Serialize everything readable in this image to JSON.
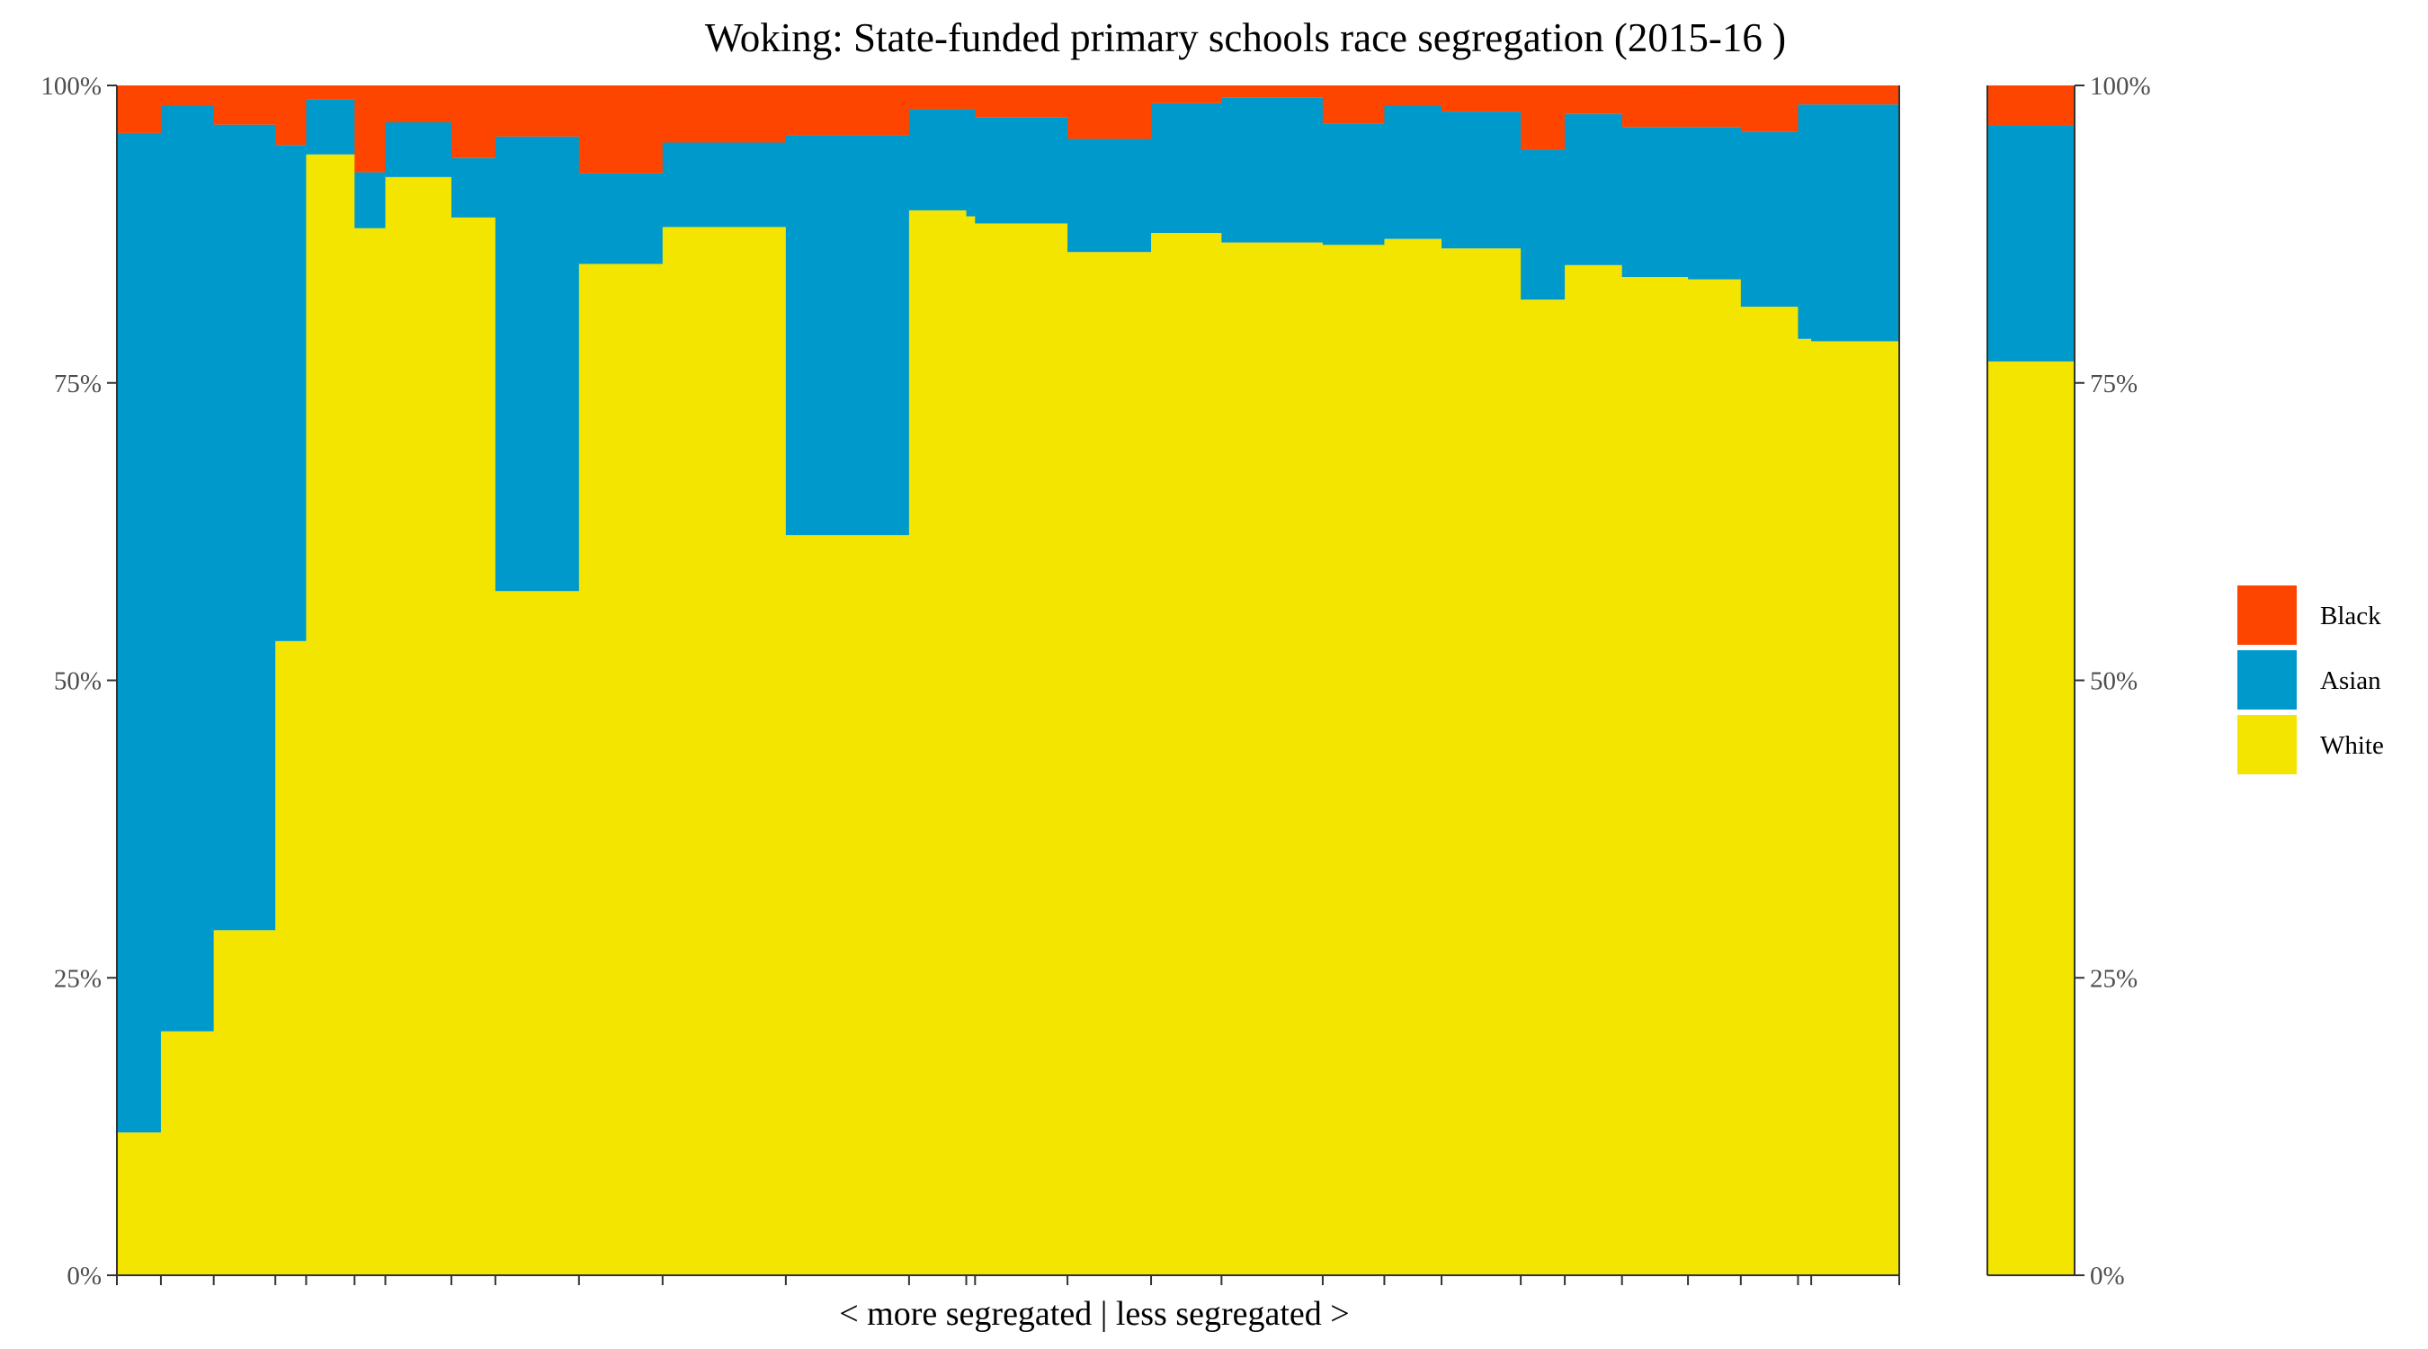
{
  "chart_data": {
    "type": "bar",
    "title": "Woking: State-funded primary schools race segregation (2015-16 )",
    "xlabel": "< more segregated | less segregated >",
    "ylabel": "",
    "ylim": [
      0,
      100
    ],
    "y_ticks": [
      "0%",
      "25%",
      "50%",
      "75%",
      "100%"
    ],
    "grid": false,
    "legend_position": "right",
    "colors": {
      "Black": "#fe4500",
      "Asian": "#0099cb",
      "White": "#f3e500"
    },
    "legend": [
      "Black",
      "Asian",
      "White"
    ],
    "schools": [
      {
        "width": 1.0,
        "white": 12.0,
        "asian": 84.0,
        "black": 4.0
      },
      {
        "width": 1.2,
        "white": 20.5,
        "asian": 77.8,
        "black": 1.7
      },
      {
        "width": 1.4,
        "white": 29.0,
        "asian": 67.7,
        "black": 3.3
      },
      {
        "width": 0.7,
        "white": 53.3,
        "asian": 41.7,
        "black": 5.0
      },
      {
        "width": 1.1,
        "white": 94.2,
        "asian": 4.6,
        "black": 1.2
      },
      {
        "width": 0.7,
        "white": 88.0,
        "asian": 4.7,
        "black": 7.3
      },
      {
        "width": 1.5,
        "white": 92.3,
        "asian": 4.6,
        "black": 3.1
      },
      {
        "width": 1.0,
        "white": 88.9,
        "asian": 5.0,
        "black": 6.1
      },
      {
        "width": 1.9,
        "white": 57.5,
        "asian": 38.2,
        "black": 4.3
      },
      {
        "width": 1.9,
        "white": 85.0,
        "asian": 7.6,
        "black": 7.4
      },
      {
        "width": 2.8,
        "white": 88.1,
        "asian": 7.1,
        "black": 4.8
      },
      {
        "width": 2.8,
        "white": 62.2,
        "asian": 33.6,
        "black": 4.2
      },
      {
        "width": 1.3,
        "white": 89.5,
        "asian": 8.5,
        "black": 2.0
      },
      {
        "width": 0.2,
        "white": 89.0,
        "asian": 9.0,
        "black": 2.0
      },
      {
        "width": 2.1,
        "white": 88.4,
        "asian": 8.9,
        "black": 2.7
      },
      {
        "width": 1.9,
        "white": 86.0,
        "asian": 9.5,
        "black": 4.5
      },
      {
        "width": 1.6,
        "white": 87.6,
        "asian": 10.9,
        "black": 1.5
      },
      {
        "width": 2.3,
        "white": 86.8,
        "asian": 12.2,
        "black": 1.0
      },
      {
        "width": 1.4,
        "white": 86.6,
        "asian": 10.2,
        "black": 3.2
      },
      {
        "width": 1.3,
        "white": 87.1,
        "asian": 11.2,
        "black": 1.7
      },
      {
        "width": 1.8,
        "white": 86.3,
        "asian": 11.5,
        "black": 2.2
      },
      {
        "width": 1.0,
        "white": 82.0,
        "asian": 12.6,
        "black": 5.4
      },
      {
        "width": 1.3,
        "white": 84.9,
        "asian": 12.7,
        "black": 2.4
      },
      {
        "width": 1.5,
        "white": 83.9,
        "asian": 12.6,
        "black": 3.5
      },
      {
        "width": 1.2,
        "white": 83.7,
        "asian": 12.8,
        "black": 3.5
      },
      {
        "width": 1.3,
        "white": 81.4,
        "asian": 14.7,
        "black": 3.9
      },
      {
        "width": 0.3,
        "white": 78.7,
        "asian": 19.7,
        "black": 1.6
      },
      {
        "width": 2.0,
        "white": 78.5,
        "asian": 19.9,
        "black": 1.6
      }
    ],
    "overall": {
      "white": 76.8,
      "asian": 19.8,
      "black": 3.4
    }
  }
}
